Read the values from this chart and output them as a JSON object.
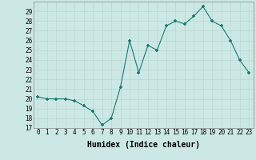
{
  "x": [
    0,
    1,
    2,
    3,
    4,
    5,
    6,
    7,
    8,
    9,
    10,
    11,
    12,
    13,
    14,
    15,
    16,
    17,
    18,
    19,
    20,
    21,
    22,
    23
  ],
  "y": [
    20.2,
    20.0,
    20.0,
    20.0,
    19.8,
    19.3,
    18.7,
    17.3,
    18.0,
    21.2,
    26.0,
    22.7,
    25.5,
    25.0,
    27.5,
    28.0,
    27.7,
    28.5,
    29.5,
    28.0,
    27.5,
    26.0,
    24.0,
    22.7
  ],
  "line_color": "#1a7a6e",
  "marker_color": "#1a7a6e",
  "bg_color": "#cce8e4",
  "grid_color": "#b8d8d4",
  "xlabel": "Humidex (Indice chaleur)",
  "xlim": [
    -0.5,
    23.5
  ],
  "ylim": [
    17,
    30
  ],
  "yticks": [
    17,
    18,
    19,
    20,
    21,
    22,
    23,
    24,
    25,
    26,
    27,
    28,
    29
  ],
  "xticks": [
    0,
    1,
    2,
    3,
    4,
    5,
    6,
    7,
    8,
    9,
    10,
    11,
    12,
    13,
    14,
    15,
    16,
    17,
    18,
    19,
    20,
    21,
    22,
    23
  ],
  "tick_fontsize": 5.5,
  "label_fontsize": 7.0
}
